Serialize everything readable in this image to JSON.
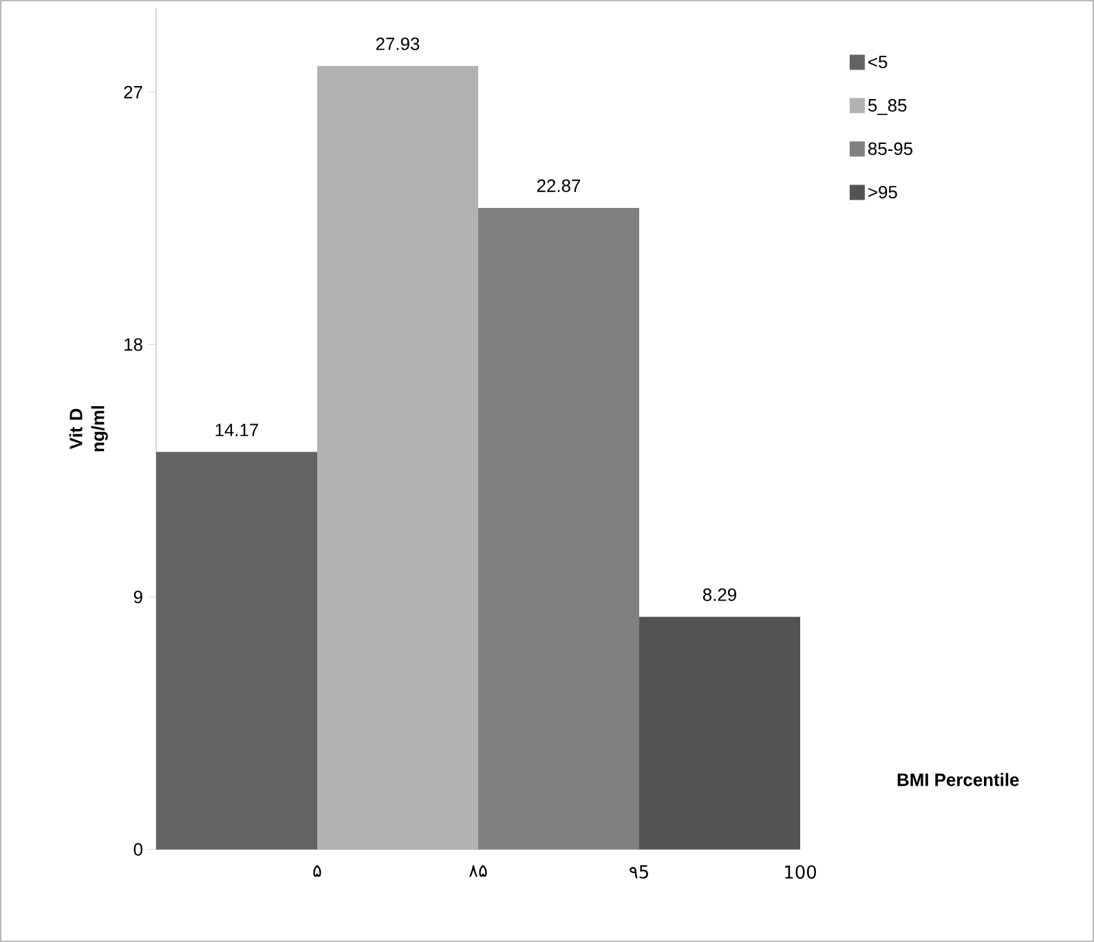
{
  "chart_data": {
    "type": "bar",
    "ylabel": "Vit D ng/ml",
    "categories": [
      null,
      null,
      null,
      null
    ],
    "ylim": [
      0,
      30
    ],
    "yticks": [
      0,
      9,
      18,
      27
    ],
    "series": [
      {
        "name": "<5",
        "color": "#636363",
        "values": [
          14.17,
          null,
          null,
          null
        ]
      },
      {
        "name": "5_85",
        "color": "#b2b2b2",
        "values": [
          null,
          27.93,
          null,
          null
        ]
      },
      {
        "name": "85-95",
        "color": "#808080",
        "values": [
          null,
          null,
          22.87,
          null
        ]
      },
      {
        "name": ">95",
        "color": "#535353",
        "values": [
          null,
          null,
          null,
          8.29
        ]
      }
    ],
    "annotations": [
      "۵",
      "۸۵",
      "۹5",
      "100",
      "BMI Percentile"
    ],
    "data_labels": true,
    "legend": "right",
    "grid": false
  }
}
